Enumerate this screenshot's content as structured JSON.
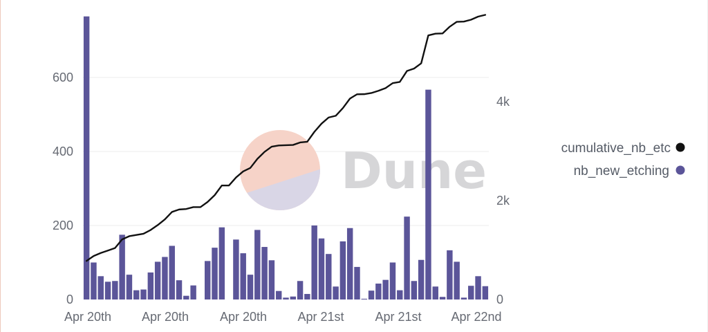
{
  "watermark": {
    "text": "Dune"
  },
  "colors": {
    "bar": "#5b5599",
    "line": "#111111",
    "legend_line": "#111111",
    "legend_bar": "#5b5599",
    "watermark_top": "#f6d3c8",
    "watermark_bottom": "#d9d6e6"
  },
  "chart_data": {
    "type": "bar",
    "x_tick_labels": [
      "Apr 20th",
      "Apr 20th",
      "Apr 20th",
      "Apr 21st",
      "Apr 21st",
      "Apr 22nd"
    ],
    "y_left": {
      "ticks": [
        "0",
        "200",
        "400",
        "600"
      ],
      "ylim": [
        0,
        770
      ]
    },
    "y_right": {
      "ticks": [
        "0",
        "2k",
        "4k"
      ],
      "ylim": [
        0,
        5750
      ]
    },
    "legend_position": "right",
    "grid": true,
    "series": [
      {
        "name": "nb_new_etching",
        "legend_label": "nb_new_etching",
        "type": "bar",
        "axis": "left",
        "values": [
          765,
          100,
          63,
          48,
          50,
          175,
          67,
          25,
          27,
          73,
          102,
          115,
          145,
          52,
          10,
          38,
          0,
          104,
          140,
          195,
          0,
          162,
          125,
          67,
          188,
          142,
          106,
          23,
          5,
          8,
          50,
          15,
          200,
          165,
          123,
          35,
          157,
          193,
          88,
          2,
          24,
          43,
          53,
          100,
          25,
          224,
          50,
          107,
          567,
          35,
          7,
          133,
          102,
          5,
          37,
          63,
          36
        ]
      },
      {
        "name": "cumulative_nb_etching",
        "legend_label": "cumulative_nb_etc",
        "type": "line",
        "axis": "right",
        "values": [
          780,
          880,
          940,
          990,
          1040,
          1215,
          1280,
          1305,
          1330,
          1405,
          1505,
          1620,
          1770,
          1820,
          1830,
          1868,
          1868,
          1972,
          2110,
          2305,
          2305,
          2468,
          2590,
          2660,
          2845,
          2985,
          3090,
          3115,
          3120,
          3125,
          3175,
          3190,
          3390,
          3555,
          3680,
          3715,
          3870,
          4063,
          4150,
          4152,
          4175,
          4220,
          4275,
          4375,
          4400,
          4620,
          4670,
          4775,
          5340,
          5375,
          5380,
          5515,
          5615,
          5620,
          5657,
          5720,
          5755
        ]
      }
    ]
  }
}
